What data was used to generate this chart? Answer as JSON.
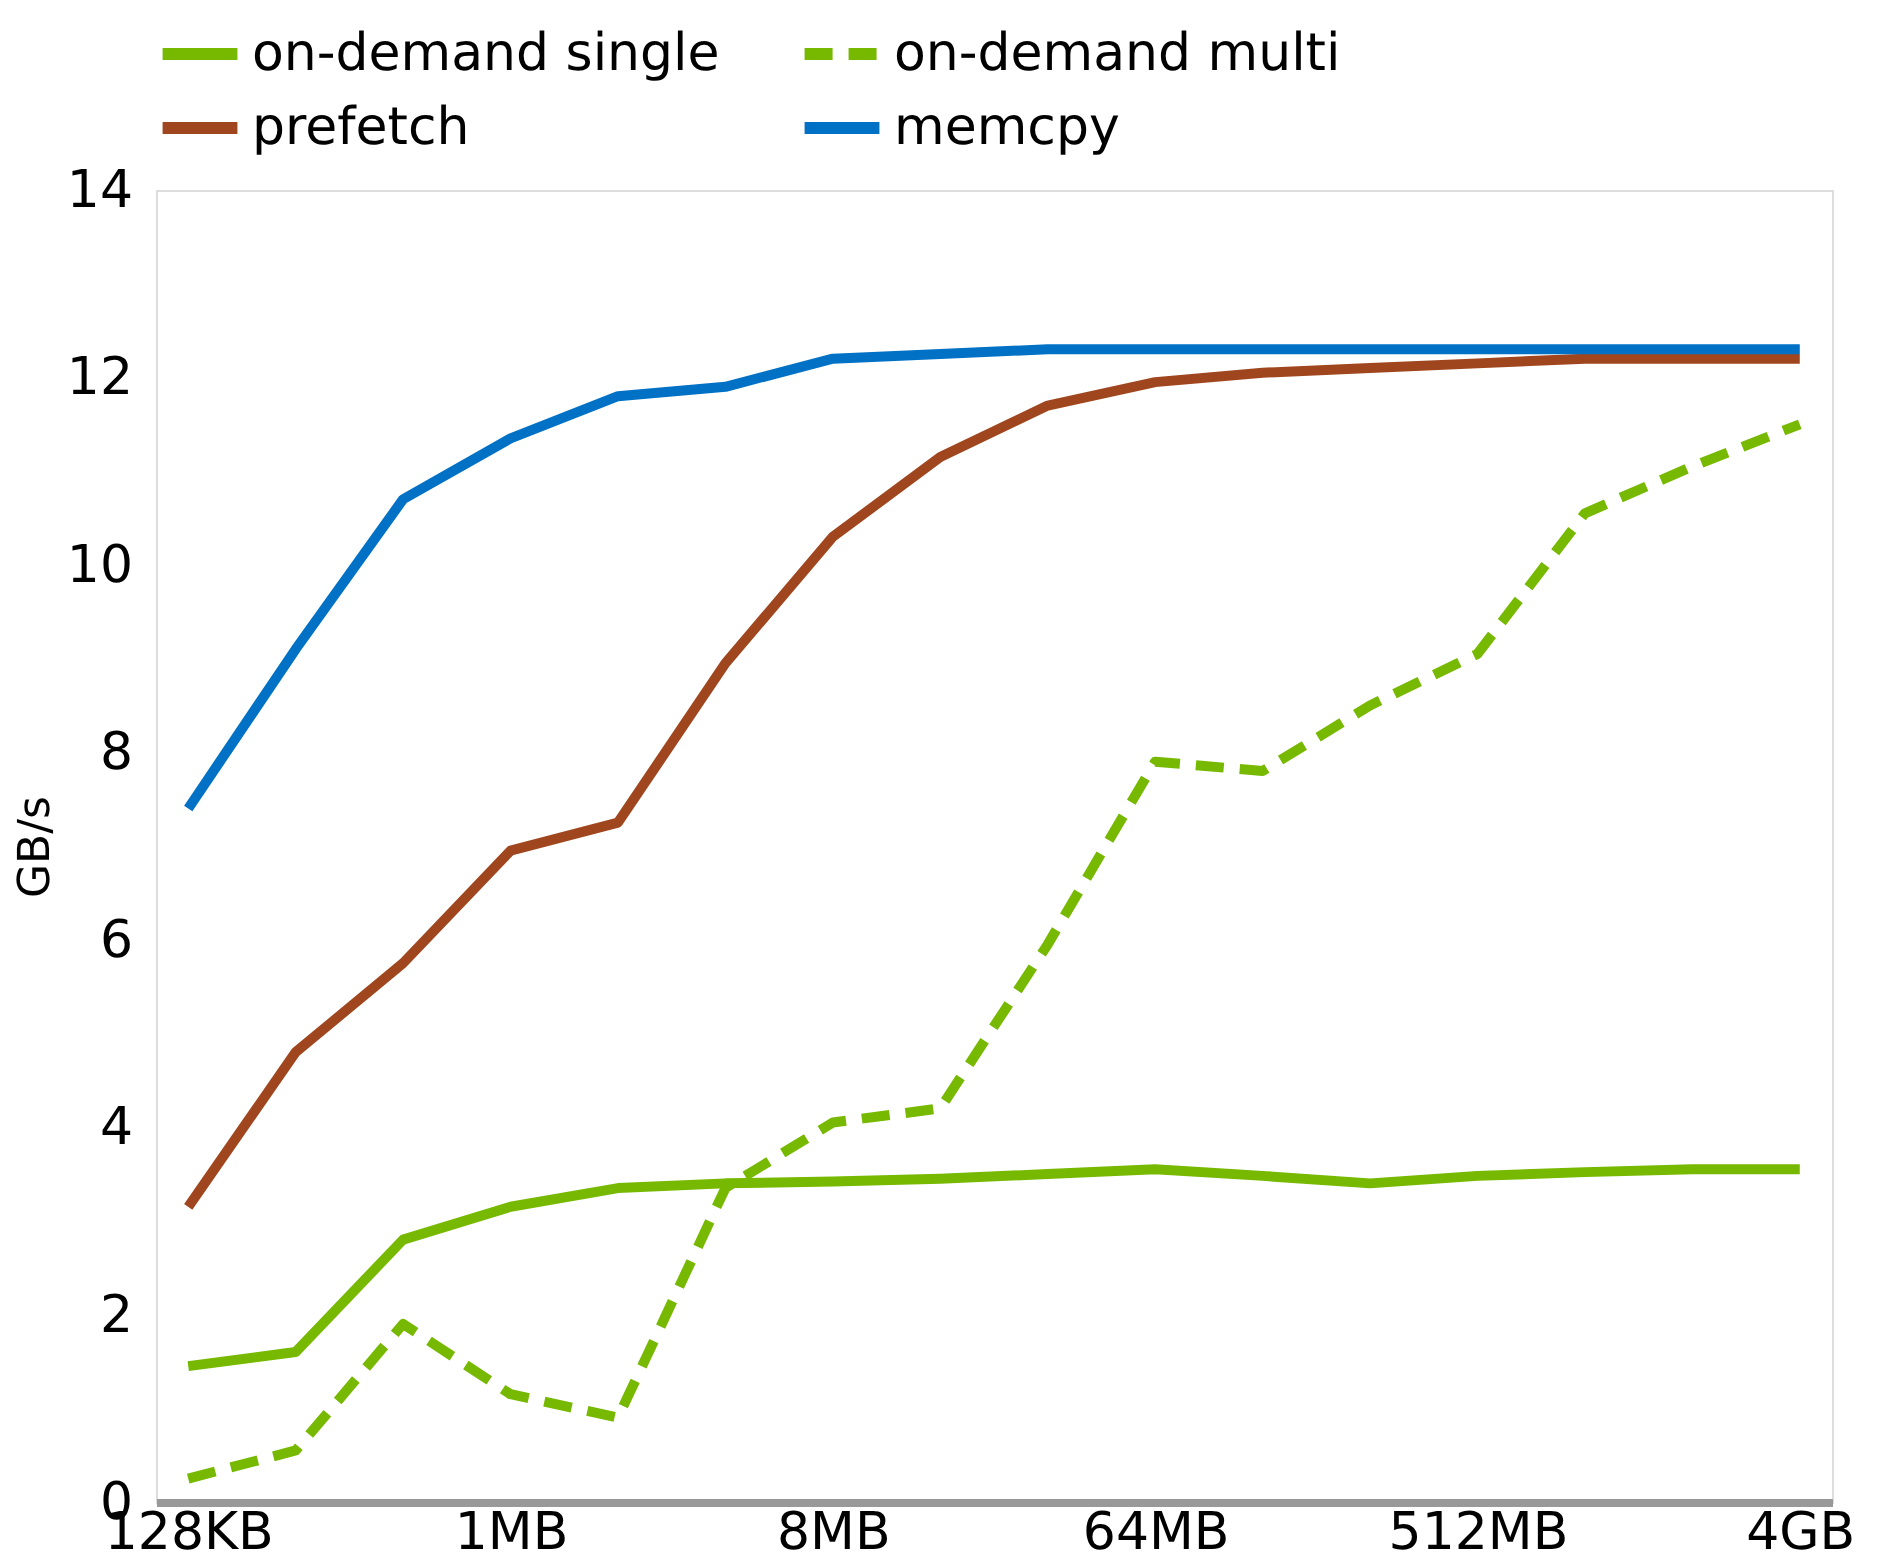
{
  "chart_data": {
    "type": "line",
    "ylabel": "GB/s",
    "legend": "top",
    "line_style": "solid",
    "marker": "none",
    "categories": [
      "128KB",
      null,
      null,
      "1MB",
      null,
      null,
      "8MB",
      null,
      null,
      "64MB",
      null,
      null,
      "512MB",
      null,
      null,
      "4GB"
    ],
    "ylim": [
      0,
      14
    ],
    "yticks": [
      0,
      2,
      4,
      6,
      8,
      10,
      12,
      14
    ],
    "series": [
      {
        "name": "on-demand single",
        "color": "#76b900",
        "values": [
          1.45,
          1.6,
          2.8,
          3.15,
          3.35,
          3.4,
          3.42,
          3.45,
          3.5,
          3.55,
          3.48,
          3.4,
          3.48,
          3.52,
          3.55,
          3.55
        ]
      },
      {
        "name": "on-demand multi",
        "color": "#76b900",
        "line_style": "dashed",
        "values": [
          0.25,
          0.55,
          1.9,
          1.15,
          0.9,
          3.35,
          4.05,
          4.2,
          5.95,
          7.9,
          7.8,
          8.5,
          9.05,
          10.55,
          11.05,
          11.5
        ]
      },
      {
        "name": "prefetch",
        "color": "#a0461e",
        "values": [
          3.15,
          4.8,
          5.75,
          6.95,
          7.25,
          8.95,
          10.3,
          11.15,
          11.7,
          11.95,
          12.05,
          12.1,
          12.15,
          12.2,
          12.2,
          12.2
        ]
      },
      {
        "name": "memcpy",
        "color": "#0071c5",
        "values": [
          7.4,
          9.1,
          10.7,
          11.35,
          11.8,
          11.9,
          12.2,
          12.25,
          12.3,
          12.3,
          12.3,
          12.3,
          12.3,
          12.3,
          12.3,
          12.3
        ]
      }
    ]
  }
}
